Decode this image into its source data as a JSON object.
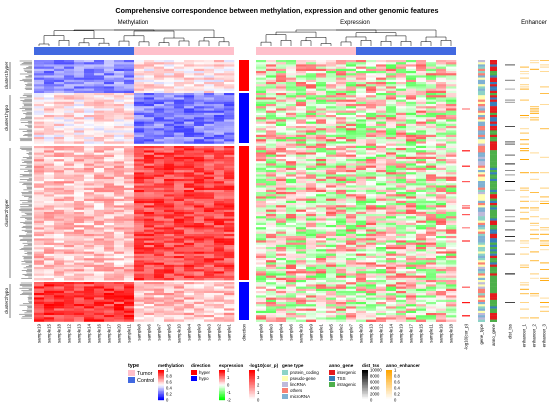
{
  "title": "Comprehensive correspondence between methylation, expression and other genomic features",
  "panels": {
    "methylation": "Methylation",
    "expression": "Expression",
    "enhancer": "Enhancer"
  },
  "row_groups": [
    "cluster1hyper",
    "cluster1hypo",
    "cluster2hyper",
    "cluster2hypo"
  ],
  "methylation_samples": [
    "sample19",
    "sample15",
    "sample18",
    "sample12",
    "sample13",
    "sample14",
    "sample16",
    "sample17",
    "sample20",
    "sample11",
    "sample8",
    "sample6",
    "sample7",
    "sample5",
    "sample10",
    "sample4",
    "sample9",
    "sample3",
    "sample2",
    "sample1"
  ],
  "direction_label": "direction",
  "expression_samples": [
    "sample8",
    "sample3",
    "sample4",
    "sample6",
    "sample10",
    "sample9",
    "sample1",
    "sample5",
    "sample2",
    "sample7",
    "sample20",
    "sample13",
    "sample12",
    "sample14",
    "sample19",
    "sample17",
    "sample15",
    "sample11",
    "sample16",
    "sample18"
  ],
  "extra_columns": [
    "-log10(cor_p)",
    "gene_type",
    "anno_gene",
    "dist_tss",
    "enhancer_1",
    "enhancer_2",
    "enhancer_3"
  ],
  "legends": {
    "type": {
      "title": "type",
      "items": [
        {
          "label": "Tumor",
          "color": "#ffc0cb"
        },
        {
          "label": "Control",
          "color": "#4169e1"
        }
      ]
    },
    "methylation": {
      "title": "methylation",
      "ticks": [
        "1",
        "0.8",
        "0.6",
        "0.4",
        "0.2",
        "0"
      ],
      "colors": [
        "#ff0000",
        "#ffffff",
        "#0000ff"
      ]
    },
    "direction": {
      "title": "direction",
      "items": [
        {
          "label": "hyper",
          "color": "#ff0000"
        },
        {
          "label": "hypo",
          "color": "#0000ff"
        }
      ]
    },
    "expression": {
      "title": "expression",
      "ticks": [
        "2",
        "1",
        "0",
        "-1",
        "-2"
      ],
      "colors": [
        "#ff0000",
        "#ffffff",
        "#00ff00"
      ]
    },
    "cor": {
      "title": "-log10(cor_p)",
      "ticks": [
        "4",
        "3",
        "2",
        "1",
        "0"
      ],
      "colors": [
        "#ff0000",
        "#ffffff"
      ]
    },
    "gene_type": {
      "title": "gene type",
      "items": [
        {
          "label": "protein_coding",
          "color": "#8dd3c7"
        },
        {
          "label": "pseudo-gene",
          "color": "#ffffb3"
        },
        {
          "label": "lincRNA",
          "color": "#bebada"
        },
        {
          "label": "others",
          "color": "#fb8072"
        },
        {
          "label": "microRNA",
          "color": "#80b1d3"
        }
      ]
    },
    "anno_gene": {
      "title": "anno_gene",
      "items": [
        {
          "label": "intergenic",
          "color": "#e41a1c"
        },
        {
          "label": "TSS",
          "color": "#377eb8"
        },
        {
          "label": "intragenic",
          "color": "#4daf4a"
        }
      ]
    },
    "dist_tss": {
      "title": "dist_tss",
      "ticks": [
        "10000",
        "8000",
        "6000",
        "4000",
        "2000",
        "0"
      ],
      "colors": [
        "#000000",
        "#ffffff"
      ]
    },
    "anno_enhancer": {
      "title": "anno_enhancer",
      "ticks": [
        "1",
        "0.8",
        "0.6",
        "0.4",
        "0.2",
        "0"
      ],
      "colors": [
        "#ffa500",
        "#ffffff"
      ]
    }
  }
}
